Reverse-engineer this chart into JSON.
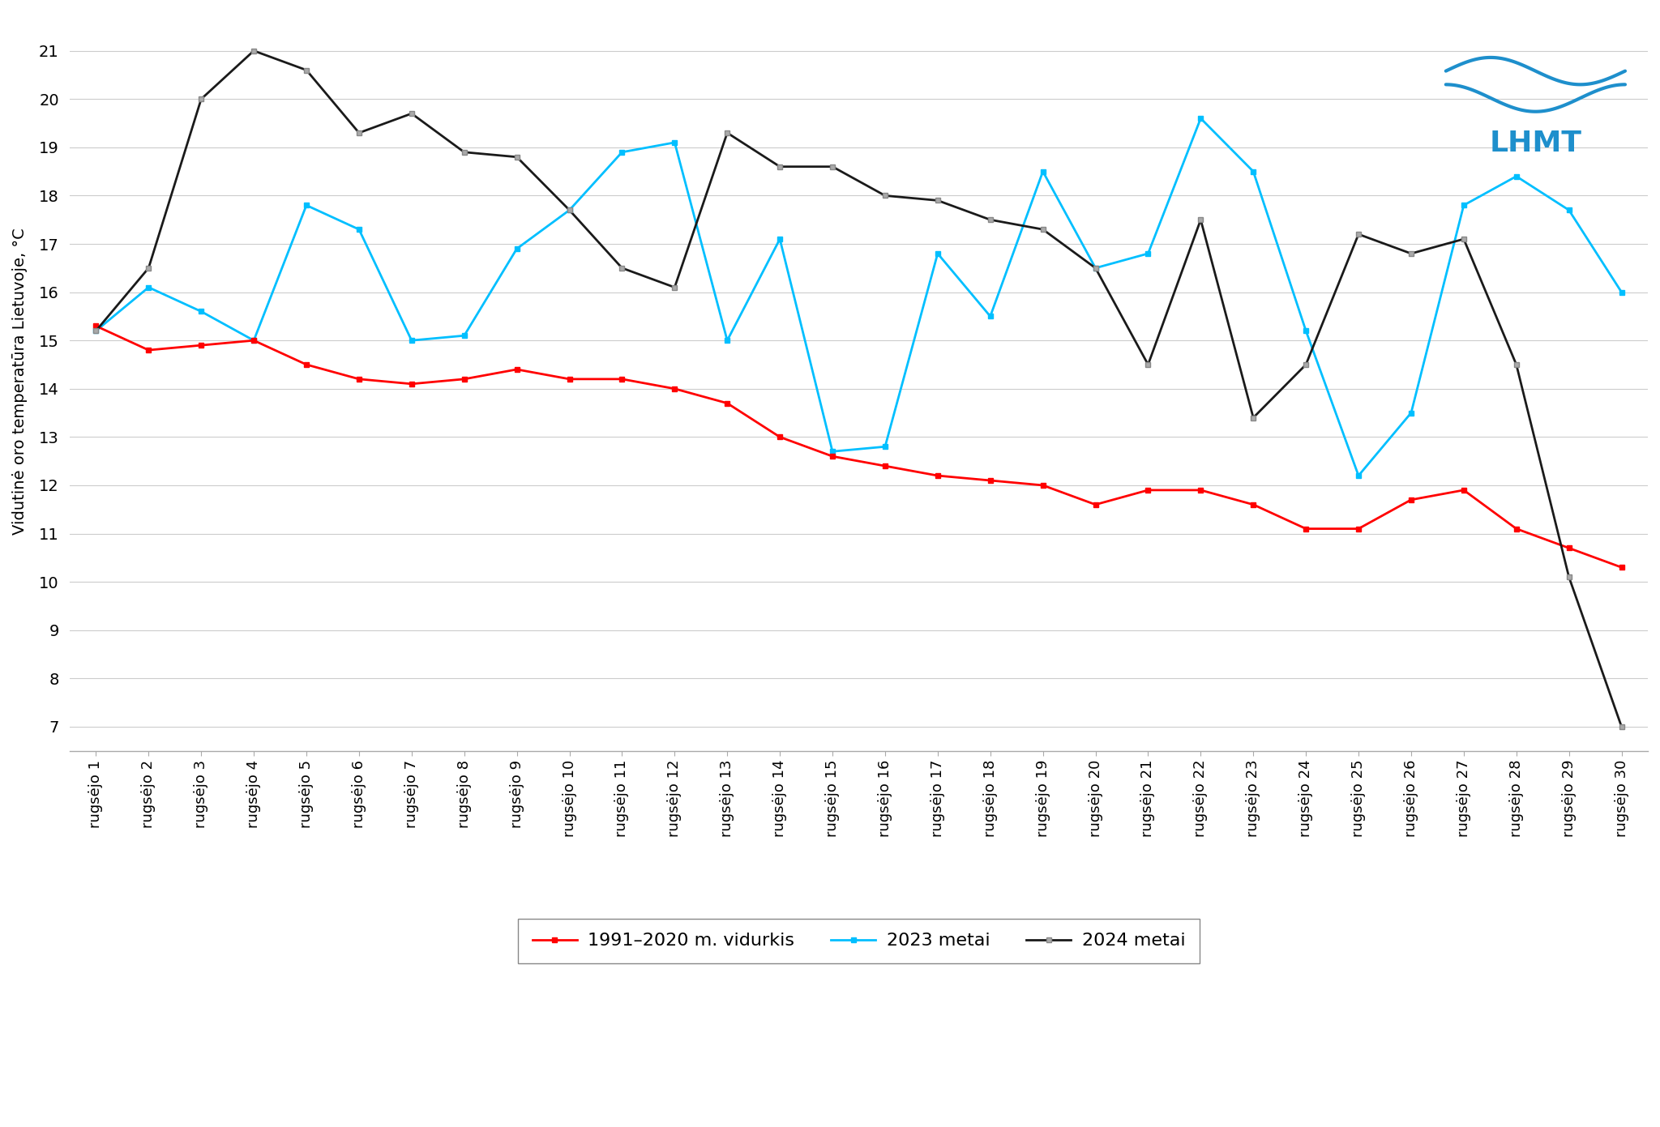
{
  "x_labels": [
    "rugsėjo 1",
    "rugsėjo 2",
    "rugsėjo 3",
    "rugsėjo 4",
    "rugsėjo 5",
    "rugsėjo 6",
    "rugsėjo 7",
    "rugsėjo 8",
    "rugsėjo 9",
    "rugsėjo 10",
    "rugsėjo 11",
    "rugsėjo 12",
    "rugsėjo 13",
    "rugsėjo 14",
    "rugsėjo 15",
    "rugsėjo 16",
    "rugsėjo 17",
    "rugsėjo 18",
    "rugsėjo 19",
    "rugsėjo 20",
    "rugsėjo 21",
    "rugsėjo 22",
    "rugsėjo 23",
    "rugsėjo 24",
    "rugsėjo 25",
    "rugsėjo 26",
    "rugsėjo 27",
    "rugsėjo 28",
    "rugsėjo 29",
    "rugsėjo 30"
  ],
  "avg_1991_2020": [
    15.3,
    14.8,
    14.9,
    15.0,
    14.5,
    14.2,
    14.1,
    14.2,
    14.4,
    14.2,
    14.2,
    14.0,
    13.7,
    13.0,
    12.6,
    12.4,
    12.2,
    12.1,
    12.0,
    11.6,
    11.9,
    11.9,
    11.6,
    11.1,
    11.1,
    11.7,
    11.9,
    11.1,
    10.7,
    10.3
  ],
  "y2023": [
    15.2,
    16.1,
    15.6,
    15.0,
    17.8,
    17.3,
    15.0,
    15.1,
    16.9,
    17.7,
    18.9,
    19.1,
    15.0,
    17.1,
    12.7,
    12.8,
    16.8,
    15.5,
    18.5,
    16.5,
    16.8,
    19.6,
    18.5,
    15.2,
    12.2,
    13.5,
    17.8,
    18.4,
    17.7,
    16.0
  ],
  "y2024": [
    15.2,
    16.5,
    20.0,
    21.0,
    20.6,
    19.3,
    19.7,
    18.9,
    18.8,
    17.7,
    16.5,
    16.1,
    19.3,
    18.6,
    18.6,
    18.0,
    17.9,
    17.5,
    17.3,
    16.5,
    14.5,
    17.5,
    13.4,
    14.5,
    17.2,
    16.8,
    17.1,
    14.5,
    10.1,
    7.0
  ],
  "avg_color": "#FF0000",
  "y2023_color": "#00BFFF",
  "y2024_color": "#1A1A1A",
  "y2024_marker_face": "#AAAAAA",
  "y2024_marker_edge": "#888888",
  "ylabel": "Vidutinė oro temperatūra Lietuvoje, °C",
  "ylim": [
    6.5,
    21.8
  ],
  "yticks": [
    7,
    8,
    9,
    10,
    11,
    12,
    13,
    14,
    15,
    16,
    17,
    18,
    19,
    20,
    21
  ],
  "legend_labels": [
    "1991–2020 m. vidurkis",
    "2023 metai",
    "2024 metai"
  ],
  "background_color": "#FFFFFF",
  "grid_color": "#CCCCCC",
  "marker_size": 5,
  "linewidth": 2.0,
  "lhmt_color": "#1E8FCC"
}
